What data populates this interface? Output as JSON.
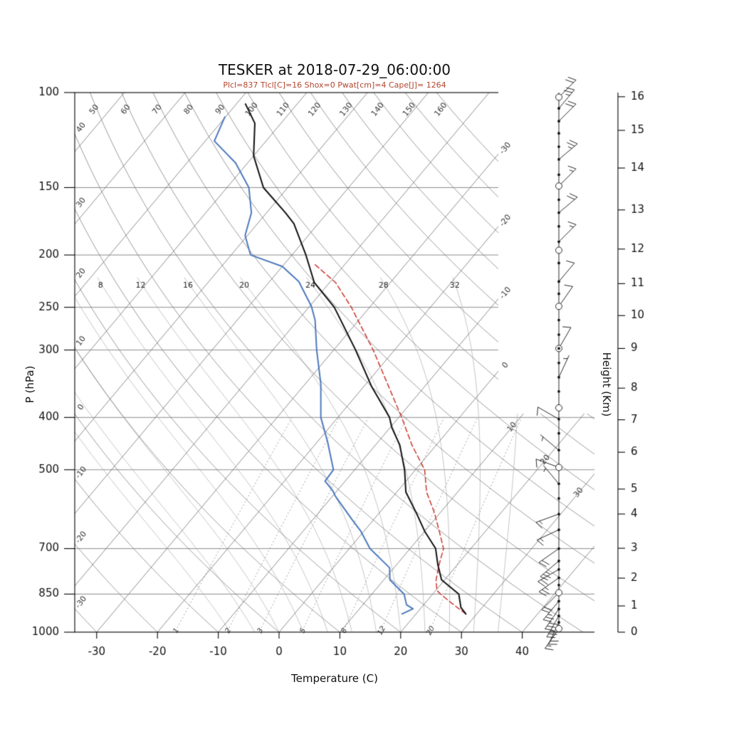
{
  "chart_data": {
    "type": "line",
    "subtype": "skew-t-log-p-sounding",
    "title": "TESKER at 2018-07-29_06:00:00",
    "subtitle": "Plcl=837 Tlcl[C]=16 Shox=0 Pwat[cm]=4 Cape[J]= 1264",
    "parameters": {
      "Plcl": 837,
      "Tlcl_C": 16,
      "Shox": 0,
      "Pwat_cm": 4,
      "Cape_J": 1264
    },
    "axes": {
      "pressure": {
        "label": "P (hPa)",
        "scale": "log",
        "ticks": [
          100,
          150,
          200,
          250,
          300,
          400,
          500,
          700,
          850,
          1000
        ]
      },
      "temperature": {
        "label": "Temperature (C)",
        "ticks": [
          -30,
          -20,
          -10,
          0,
          10,
          20,
          30,
          40
        ]
      },
      "height": {
        "label": "Height (Km)"
      }
    },
    "height_scale": [
      [
        0,
        1000
      ],
      [
        1,
        894
      ],
      [
        2,
        794
      ],
      [
        3,
        699
      ],
      [
        4,
        604
      ],
      [
        5,
        543
      ],
      [
        6,
        464
      ],
      [
        7,
        404
      ],
      [
        8,
        353
      ],
      [
        9,
        298
      ],
      [
        10,
        259
      ],
      [
        11,
        226
      ],
      [
        12,
        195
      ],
      [
        13,
        165
      ],
      [
        14,
        138
      ],
      [
        15,
        117.5
      ],
      [
        16,
        101.8
      ]
    ],
    "grid": {
      "isotherms_c": {
        "min": -120,
        "max": 40,
        "step": 10,
        "right_labels": [
          -30,
          -20,
          -10,
          0,
          10,
          20,
          30
        ]
      },
      "dry_adiabats_c": {
        "min": -30,
        "max": 160,
        "step": 10,
        "left_labels": [
          -30,
          -20,
          -10,
          0,
          10,
          20,
          30,
          40
        ],
        "top_labels": [
          50,
          60,
          70,
          80,
          90,
          100,
          110,
          120,
          130,
          140,
          150,
          160
        ]
      },
      "moist_adiabats_c": {
        "min": -8,
        "max": 36,
        "step": 4,
        "labels": [
          8,
          12,
          16,
          20,
          24,
          28,
          32
        ],
        "label_pressure": 225
      },
      "mixing_ratio_g_kg": [
        1,
        2,
        3,
        5,
        8,
        12,
        20
      ]
    },
    "series": {
      "temperature": [
        [
          925,
          28.2
        ],
        [
          900,
          26.5
        ],
        [
          850,
          24.3
        ],
        [
          800,
          19.5
        ],
        [
          750,
          16.8
        ],
        [
          700,
          14.2
        ],
        [
          650,
          10.0
        ],
        [
          600,
          6.0
        ],
        [
          550,
          1.5
        ],
        [
          500,
          -1.8
        ],
        [
          450,
          -6.0
        ],
        [
          417,
          -9.8
        ],
        [
          400,
          -11.5
        ],
        [
          350,
          -18.8
        ],
        [
          300,
          -26.4
        ],
        [
          250,
          -35.8
        ],
        [
          225,
          -42.5
        ],
        [
          200,
          -47.7
        ],
        [
          175,
          -54.0
        ],
        [
          167,
          -56.9
        ],
        [
          150,
          -64.0
        ],
        [
          131,
          -70.0
        ],
        [
          114,
          -74.3
        ],
        [
          105,
          -78.5
        ]
      ],
      "dewpoint": [
        [
          925,
          17.7
        ],
        [
          905,
          18.8
        ],
        [
          890,
          17.2
        ],
        [
          850,
          15.3
        ],
        [
          800,
          11.0
        ],
        [
          760,
          9.3
        ],
        [
          700,
          3.4
        ],
        [
          650,
          -0.5
        ],
        [
          619,
          -3.5
        ],
        [
          560,
          -9.5
        ],
        [
          548,
          -10.6
        ],
        [
          525,
          -13.3
        ],
        [
          500,
          -13.5
        ],
        [
          443,
          -18.4
        ],
        [
          400,
          -22.8
        ],
        [
          347,
          -27.4
        ],
        [
          300,
          -32.8
        ],
        [
          264,
          -37.2
        ],
        [
          249,
          -39.7
        ],
        [
          224,
          -45.2
        ],
        [
          210,
          -50.0
        ],
        [
          200,
          -56.8
        ],
        [
          184,
          -60.4
        ],
        [
          167,
          -62.5
        ],
        [
          150,
          -66.4
        ],
        [
          135,
          -72.0
        ],
        [
          123,
          -78.5
        ],
        [
          111,
          -80.1
        ]
      ],
      "parcel": [
        [
          925,
          28.2
        ],
        [
          900,
          25.9
        ],
        [
          875,
          23.6
        ],
        [
          850,
          21.3
        ],
        [
          837,
          20.2
        ],
        [
          800,
          18.6
        ],
        [
          750,
          17.0
        ],
        [
          700,
          15.5
        ],
        [
          650,
          12.4
        ],
        [
          600,
          9.0
        ],
        [
          550,
          4.9
        ],
        [
          500,
          1.5
        ],
        [
          450,
          -4.0
        ],
        [
          400,
          -9.5
        ],
        [
          350,
          -16.0
        ],
        [
          300,
          -23.5
        ],
        [
          250,
          -33.0
        ],
        [
          225,
          -39.0
        ],
        [
          208,
          -45.0
        ]
      ]
    },
    "winds": [
      {
        "p": 102,
        "sym": "circle",
        "dir": 45,
        "spd": 20
      },
      {
        "p": 107,
        "sym": "dot",
        "dir": 40,
        "spd": 25
      },
      {
        "p": 113,
        "sym": "dot",
        "dir": 45,
        "spd": 20
      },
      {
        "p": 119,
        "sym": "dot"
      },
      {
        "p": 126,
        "sym": "dot"
      },
      {
        "p": 133,
        "sym": "dot",
        "dir": 50,
        "spd": 25
      },
      {
        "p": 142,
        "sym": "dot"
      },
      {
        "p": 149,
        "sym": "circle",
        "dir": 45,
        "spd": 15
      },
      {
        "p": 158,
        "sym": "dot"
      },
      {
        "p": 167,
        "sym": "dot",
        "dir": 50,
        "spd": 20
      },
      {
        "p": 177,
        "sym": "dot"
      },
      {
        "p": 189,
        "sym": "dot",
        "dir": 45,
        "spd": 15
      },
      {
        "p": 196,
        "sym": "circle"
      },
      {
        "p": 207,
        "sym": "dot"
      },
      {
        "p": 224,
        "sym": "dot",
        "dir": 40,
        "spd": 10
      },
      {
        "p": 236,
        "sym": "dot"
      },
      {
        "p": 249,
        "sym": "circle",
        "dir": 35,
        "spd": 10
      },
      {
        "p": 264,
        "sym": "dot"
      },
      {
        "p": 281,
        "sym": "dot"
      },
      {
        "p": 298,
        "sym": "circledot",
        "dir": 30,
        "spd": 10
      },
      {
        "p": 317,
        "sym": "dot"
      },
      {
        "p": 337,
        "sym": "dot",
        "dir": 25,
        "spd": 5
      },
      {
        "p": 358,
        "sym": "dot"
      },
      {
        "p": 384,
        "sym": "circle"
      },
      {
        "p": 403,
        "sym": "dot",
        "dir": 300,
        "spd": 10
      },
      {
        "p": 428,
        "sym": "dot"
      },
      {
        "p": 460,
        "sym": "dot",
        "dir": 310,
        "spd": 5
      },
      {
        "p": 495,
        "sym": "circle",
        "dir": 290,
        "spd": 10
      },
      {
        "p": 531,
        "sym": "dot",
        "dir": 320,
        "spd": 5
      },
      {
        "p": 565,
        "sym": "dot"
      },
      {
        "p": 604,
        "sym": "dot",
        "dir": 250,
        "spd": 15
      },
      {
        "p": 646,
        "sym": "dot",
        "dir": 245,
        "spd": 15
      },
      {
        "p": 700,
        "sym": "dot",
        "dir": 235,
        "spd": 20
      },
      {
        "p": 738,
        "sym": "dot",
        "dir": 230,
        "spd": 25
      },
      {
        "p": 765,
        "sym": "dot",
        "dir": 240,
        "spd": 20
      },
      {
        "p": 793,
        "sym": "dot",
        "dir": 235,
        "spd": 25
      },
      {
        "p": 818,
        "sym": "dot"
      },
      {
        "p": 845,
        "sym": "circle",
        "dir": 225,
        "spd": 20
      },
      {
        "p": 876,
        "sym": "dot",
        "dir": 220,
        "spd": 25
      },
      {
        "p": 906,
        "sym": "dot",
        "dir": 215,
        "spd": 30
      },
      {
        "p": 933,
        "sym": "dot",
        "dir": 210,
        "spd": 25
      },
      {
        "p": 959,
        "sym": "dot",
        "dir": 205,
        "spd": 20
      },
      {
        "p": 985,
        "sym": "circle",
        "dir": 215,
        "spd": 15
      }
    ]
  },
  "colors": {
    "temperature": "#111111",
    "dewpoint": "#4d79bd",
    "parcel": "#c9352b",
    "subtitle": "#b2462e",
    "grid": "#6e6e6e",
    "moist": "#b5b5b5",
    "mixing": "#8a8a8a",
    "axis": "#000000"
  }
}
